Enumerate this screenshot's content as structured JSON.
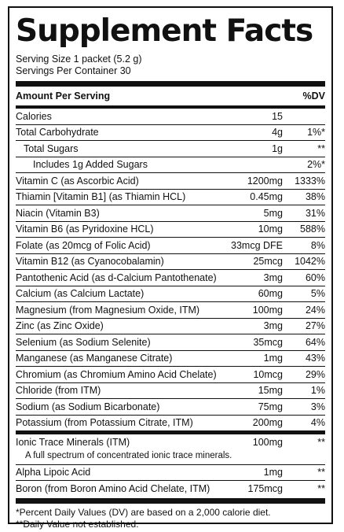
{
  "title": "Supplement Facts",
  "serving_size": "Serving Size 1 packet (5.2 g)",
  "servings_per_container": "Servings Per Container 30",
  "header": {
    "amount_per_serving": "Amount Per Serving",
    "dv": "%DV"
  },
  "rows": [
    {
      "name": "Calories",
      "amount": "15",
      "dv": ""
    },
    {
      "name": "Total Carbohydrate",
      "amount": "4g",
      "dv": "1%*"
    },
    {
      "name": "Total Sugars",
      "amount": "1g",
      "dv": "**"
    },
    {
      "name": "Includes 1g Added Sugars",
      "amount": "",
      "dv": "2%*"
    },
    {
      "name": "Vitamin C (as Ascorbic Acid)",
      "amount": "1200mg",
      "dv": "1333%"
    },
    {
      "name": "Thiamin [Vitamin B1] (as Thiamin HCL)",
      "amount": "0.45mg",
      "dv": "38%"
    },
    {
      "name": "Niacin (Vitamin B3)",
      "amount": "5mg",
      "dv": "31%"
    },
    {
      "name": "Vitamin B6 (as Pyridoxine HCL)",
      "amount": "10mg",
      "dv": "588%"
    },
    {
      "name": "Folate (as 20mcg of Folic Acid)",
      "amount": "33mcg DFE",
      "dv": "8%"
    },
    {
      "name": "Vitamin B12 (as Cyanocobalamin)",
      "amount": "25mcg",
      "dv": "1042%"
    },
    {
      "name": "Pantothenic Acid (as d-Calcium Pantothenate)",
      "amount": "3mg",
      "dv": "60%"
    },
    {
      "name": "Calcium (as Calcium Lactate)",
      "amount": "60mg",
      "dv": "5%"
    },
    {
      "name": "Magnesium (from Magnesium Oxide, ITM)",
      "amount": "100mg",
      "dv": "24%"
    },
    {
      "name": "Zinc (as Zinc Oxide)",
      "amount": "3mg",
      "dv": "27%"
    },
    {
      "name": "Selenium (as Sodium Selenite)",
      "amount": "35mcg",
      "dv": "64%"
    },
    {
      "name": "Manganese (as Manganese Citrate)",
      "amount": "1mg",
      "dv": "43%"
    },
    {
      "name": "Chromium (as Chromium Amino Acid Chelate)",
      "amount": "10mcg",
      "dv": "29%"
    },
    {
      "name": "Chloride (from ITM)",
      "amount": "15mg",
      "dv": "1%"
    },
    {
      "name": "Sodium (as Sodium Bicarbonate)",
      "amount": "75mg",
      "dv": "3%"
    },
    {
      "name": "Potassium (from Potassium Citrate, ITM)",
      "amount": "200mg",
      "dv": "4%"
    }
  ],
  "other": {
    "ionic": {
      "name": "Ionic Trace Minerals (ITM)",
      "amount": "100mg",
      "dv": "**"
    },
    "ionic_note": "A full spectrum of concentrated ionic trace minerals.",
    "alpha": {
      "name": "Alpha Lipoic Acid",
      "amount": "1mg",
      "dv": "**"
    },
    "boron": {
      "name": "Boron (from Boron Amino Acid Chelate, ITM)",
      "amount": "175mcg",
      "dv": "**"
    }
  },
  "footnotes": {
    "dv_note": "*Percent Daily Values (DV) are based on a 2,000 calorie diet.",
    "not_established": "**Daily Value not established."
  }
}
